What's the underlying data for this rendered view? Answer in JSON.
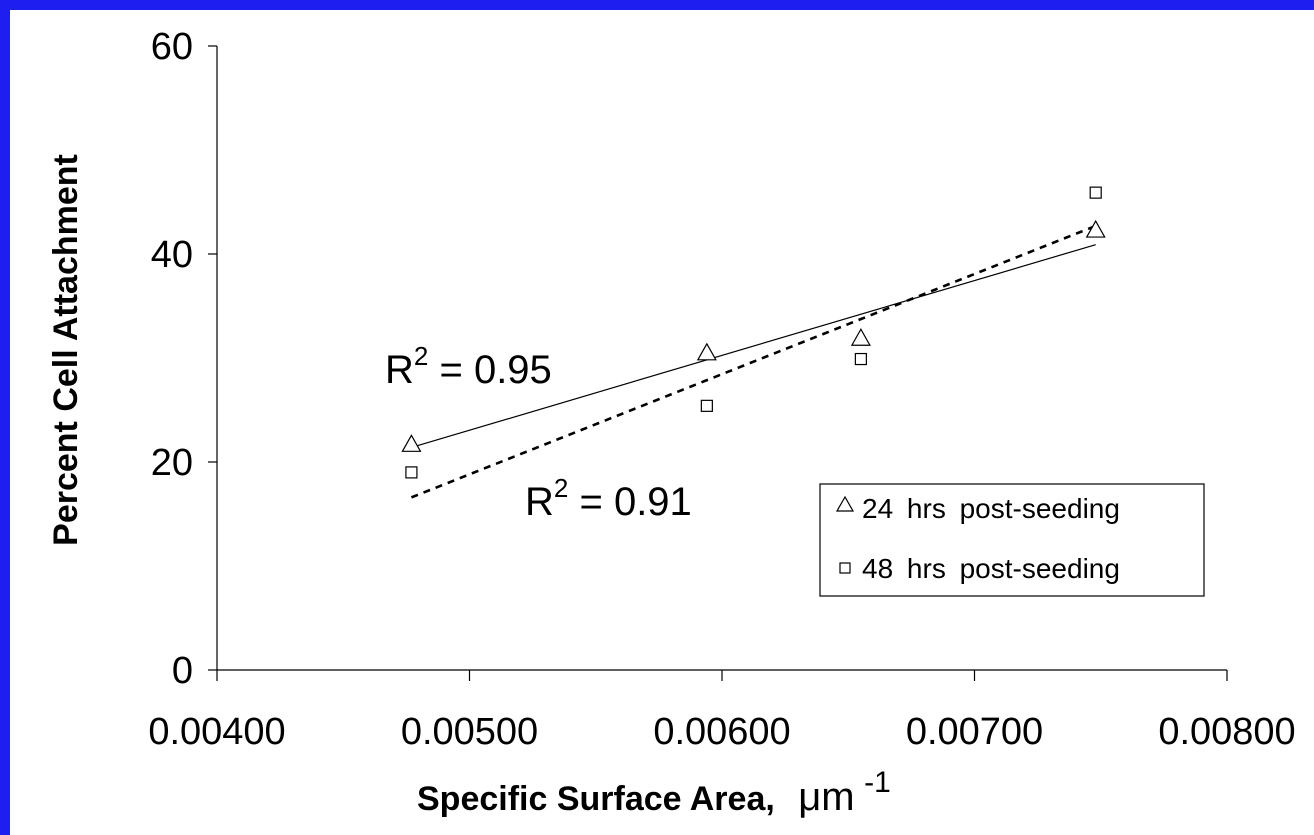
{
  "colors": {
    "frame": "#1e1ef0",
    "background": "#ffffff",
    "ink": "#000000"
  },
  "chart_data": {
    "type": "scatter",
    "title": "",
    "xlabel": "Specific Surface Area,",
    "xlabel_unit": "μm",
    "xlabel_unit_exp": "-1",
    "ylabel": "Percent Cell Attachment",
    "xlim": [
      0.004,
      0.008
    ],
    "ylim": [
      0,
      60
    ],
    "x_ticks": [
      0.004,
      0.005,
      0.006,
      0.007,
      0.008
    ],
    "x_tick_labels": [
      "0.00400",
      "0.00500",
      "0.00600",
      "0.00700",
      "0.00800"
    ],
    "y_ticks": [
      0,
      20,
      40,
      60
    ],
    "y_tick_labels": [
      "0",
      "20",
      "40",
      "60"
    ],
    "grid": false,
    "legend_position": "bottom-right",
    "series": [
      {
        "name": "24 hrs post-seeding",
        "marker": "triangle",
        "x": [
          0.00477,
          0.00594,
          0.00655,
          0.00748
        ],
        "y": [
          21.7,
          30.5,
          31.9,
          42.3
        ],
        "trendline": {
          "type": "linear",
          "x_range": [
            0.00477,
            0.00748
          ],
          "y_range": [
            21.4,
            40.9
          ],
          "style": "solid"
        }
      },
      {
        "name": "48 hrs post-seeding",
        "marker": "square",
        "x": [
          0.00477,
          0.00594,
          0.00655,
          0.00748
        ],
        "y": [
          19.0,
          25.4,
          29.9,
          45.9
        ],
        "trendline": {
          "type": "linear",
          "x_range": [
            0.00477,
            0.00748
          ],
          "y_range": [
            16.6,
            42.7
          ],
          "style": "dashed"
        }
      }
    ],
    "annotations": [
      {
        "base": "R",
        "sup": "2",
        "text": " = 0.95"
      },
      {
        "base": "R",
        "sup": "2",
        "text": " = 0.91"
      }
    ]
  }
}
